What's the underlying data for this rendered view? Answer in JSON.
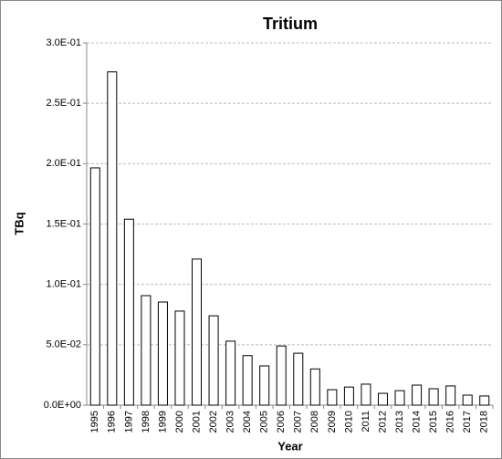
{
  "chart_data": {
    "type": "bar",
    "title": "Tritium",
    "xlabel": "Year",
    "ylabel": "TBq",
    "categories": [
      "1995",
      "1996",
      "1997",
      "1998",
      "1999",
      "2000",
      "2001",
      "2002",
      "2003",
      "2004",
      "2005",
      "2006",
      "2007",
      "2008",
      "2009",
      "2010",
      "2011",
      "2012",
      "2013",
      "2014",
      "2015",
      "2016",
      "2017",
      "2018"
    ],
    "values": [
      0.1965,
      0.276,
      0.154,
      0.0907,
      0.0854,
      0.0779,
      0.121,
      0.074,
      0.053,
      0.041,
      0.0325,
      0.049,
      0.043,
      0.03,
      0.0128,
      0.015,
      0.0174,
      0.0098,
      0.012,
      0.0166,
      0.0136,
      0.0159,
      0.0083,
      0.0076
    ],
    "color": "#ffffff",
    "ylim": [
      0,
      0.3
    ],
    "yticks": [
      {
        "value": 0,
        "label": "0.0E+00"
      },
      {
        "value": 0.05,
        "label": "5.0E-02"
      },
      {
        "value": 0.1,
        "label": "1.0E-01"
      },
      {
        "value": 0.15,
        "label": "1.5E-01"
      },
      {
        "value": 0.2,
        "label": "2.0E-01"
      },
      {
        "value": 0.25,
        "label": "2.5E-01"
      },
      {
        "value": 0.3,
        "label": "3.0E-01"
      }
    ],
    "grid": true
  }
}
